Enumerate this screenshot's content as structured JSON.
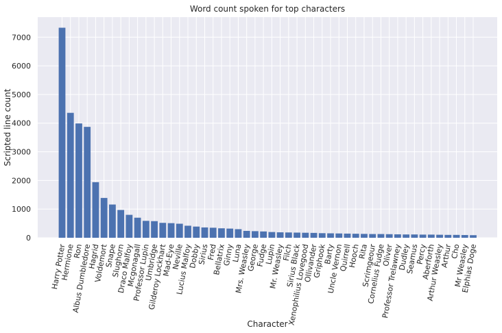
{
  "chart_data": {
    "type": "bar",
    "title": "Word count spoken for top characters",
    "xlabel": "Character",
    "ylabel": "Scripted line count",
    "ylim": [
      0,
      7700
    ],
    "yticks": [
      0,
      1000,
      2000,
      3000,
      4000,
      5000,
      6000,
      7000
    ],
    "grid": true,
    "bar_color": "#4c72b0",
    "background_color": "#eaeaf2",
    "categories": [
      "Harry Potter",
      "Hermione",
      "Ron",
      "Albus Dumbledore",
      "Hagrid",
      "Voldemort",
      "Snape",
      "Slughorn",
      "Draco Malfoy",
      "Mcgonagall",
      "Professor Lupin",
      "Umbridge",
      "Gilderoy Lockhart",
      "Mad-Eye",
      "Neville",
      "Lucius Malfoy",
      "Dobby",
      "Sirius",
      "Fred",
      "Bellatrix",
      "Ginny",
      "Luna",
      "Mrs. Weasley",
      "George",
      "Fudge",
      "Lupin",
      "Mr. Weasley",
      "Filch",
      "Sirius Black",
      "Xenophilius Lovegood",
      "Ollivander",
      "Griphook",
      "Barty",
      "Uncle Vernon",
      "Quirrell",
      "Hooch",
      "Rita",
      "Scrimgeour",
      "Cornelius Fudge",
      "Oliver",
      "Professor Trelawney",
      "Dudley",
      "Seamus",
      "Percy",
      "Aberforth",
      "Arthur Weasley",
      "Arthur",
      "Cho",
      "Mr Weasley",
      "Elphias Doge"
    ],
    "values": [
      7330,
      4360,
      3990,
      3870,
      1940,
      1390,
      1160,
      970,
      800,
      700,
      590,
      580,
      520,
      510,
      490,
      420,
      390,
      360,
      350,
      330,
      320,
      300,
      240,
      230,
      220,
      200,
      190,
      185,
      180,
      175,
      170,
      160,
      155,
      150,
      145,
      140,
      135,
      130,
      130,
      125,
      120,
      115,
      115,
      110,
      110,
      105,
      100,
      100,
      95,
      90
    ]
  }
}
